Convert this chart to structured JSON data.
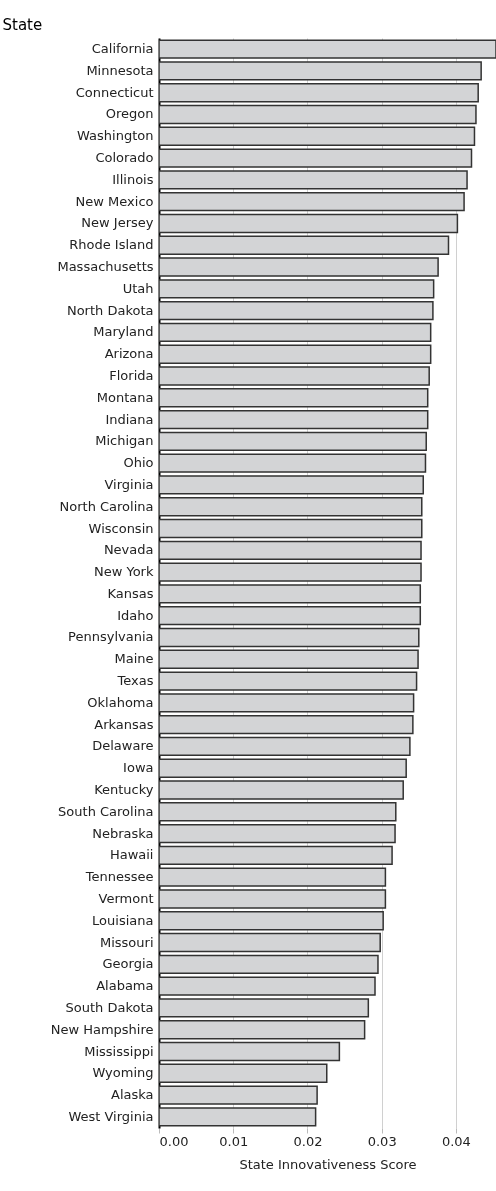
{
  "chart_data": {
    "type": "bar",
    "orientation": "horizontal",
    "ylabel": "State",
    "xlabel": "State Innovativeness Score",
    "categories": [
      "California",
      "Minnesota",
      "Connecticut",
      "Oregon",
      "Washington",
      "Colorado",
      "Illinois",
      "New Mexico",
      "New Jersey",
      "Rhode Island",
      "Massachusetts",
      "Utah",
      "North Dakota",
      "Maryland",
      "Arizona",
      "Florida",
      "Montana",
      "Indiana",
      "Michigan",
      "Ohio",
      "Virginia",
      "North Carolina",
      "Wisconsin",
      "Nevada",
      "New York",
      "Kansas",
      "Idaho",
      "Pennsylvania",
      "Maine",
      "Texas",
      "Oklahoma",
      "Arkansas",
      "Delaware",
      "Iowa",
      "Kentucky",
      "South Carolina",
      "Nebraska",
      "Hawaii",
      "Tennessee",
      "Vermont",
      "Louisiana",
      "Missouri",
      "Georgia",
      "Alabama",
      "South Dakota",
      "New Hampshire",
      "Mississippi",
      "Wyoming",
      "Alaska",
      "West Virginia"
    ],
    "values": [
      0.0454,
      0.0434,
      0.043,
      0.0427,
      0.0425,
      0.0421,
      0.0415,
      0.0411,
      0.0402,
      0.039,
      0.0376,
      0.037,
      0.0369,
      0.0366,
      0.0366,
      0.0364,
      0.0362,
      0.0362,
      0.036,
      0.0359,
      0.0356,
      0.0354,
      0.0354,
      0.0353,
      0.0353,
      0.0352,
      0.0352,
      0.035,
      0.0349,
      0.0347,
      0.0343,
      0.0342,
      0.0338,
      0.0333,
      0.0329,
      0.0319,
      0.0318,
      0.0314,
      0.0305,
      0.0305,
      0.0302,
      0.0298,
      0.0295,
      0.0291,
      0.0282,
      0.0277,
      0.0243,
      0.0226,
      0.0213,
      0.0211
    ],
    "color": "#d3d4d6",
    "xlim": [
      0,
      0.0454
    ],
    "xticks": [
      {
        "value": 0,
        "label": "0.00"
      },
      {
        "value": 0.01,
        "label": "0.01"
      },
      {
        "value": 0.02,
        "label": "0.02"
      },
      {
        "value": 0.03,
        "label": "0.03"
      },
      {
        "value": 0.04,
        "label": "0.04"
      }
    ],
    "grid": "x"
  }
}
